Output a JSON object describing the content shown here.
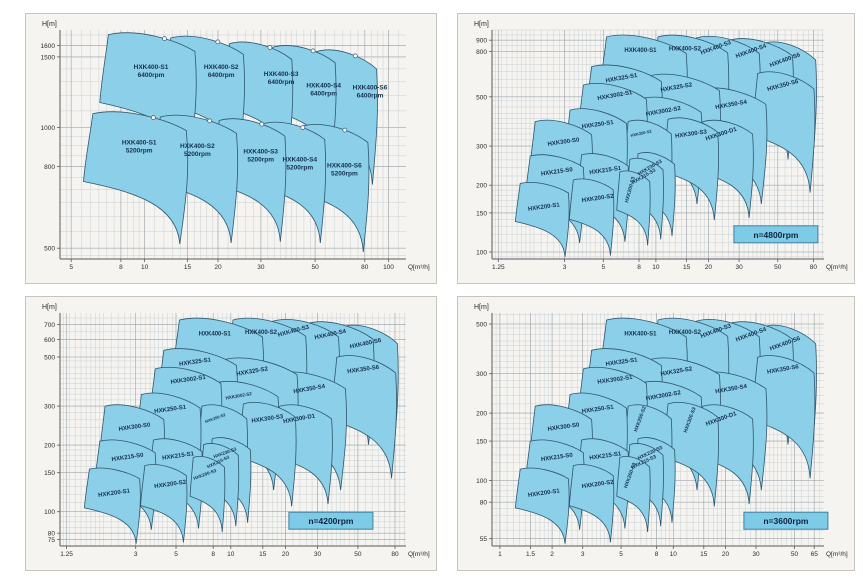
{
  "colors": {
    "region_fill": "#8BCFE9",
    "region_stroke": "#2F566D",
    "region_label": "#14304D",
    "grid_minor": "#C9CFD4",
    "grid_major": "#9FA8AD",
    "axis": "#5A5A5A",
    "text": "#2A2A2A",
    "panel_bg": "#F5F4F0",
    "panel_border": "#C7C4BE",
    "badge_fill": "#7DCBE6",
    "badge_border": "#3F7FA0",
    "badge_text": "#0F2340"
  },
  "region_fields": [
    "label",
    "x",
    "y",
    "w",
    "h",
    "label_x",
    "label_y",
    "label_rot_deg",
    "label_font_px",
    "sublabel"
  ],
  "chart_data": [
    {
      "id": "hxk400-6400-5200",
      "type": "area",
      "ylabel": "H[m]",
      "xlabel": "Q[m³/h]",
      "badge": null,
      "badge_x": 0.76,
      "markers": true,
      "x_ticks": [
        5,
        8,
        10,
        15,
        20,
        30,
        50,
        80,
        100
      ],
      "x_range": [
        4.5,
        118
      ],
      "y_ticks": [
        1600,
        1500,
        1000,
        800,
        500
      ],
      "y_range": [
        470,
        1750
      ],
      "regions": [
        [
          "HXK400-S6",
          0.74,
          0.095,
          0.175,
          0.58,
          0.896,
          0.26,
          0,
          6.5,
          "6400rpm"
        ],
        [
          "HXK400-S4",
          0.615,
          0.075,
          0.18,
          0.52,
          0.762,
          0.25,
          0,
          6.5,
          "6400rpm"
        ],
        [
          "HXK400-S3",
          0.49,
          0.06,
          0.18,
          0.53,
          0.639,
          0.2,
          0,
          6.5,
          "6400rpm"
        ],
        [
          "HXK400-S2",
          0.32,
          0.035,
          0.21,
          0.55,
          0.466,
          0.17,
          0,
          6.5,
          "6400rpm"
        ],
        [
          "HXK400-S1",
          0.14,
          0.02,
          0.25,
          0.57,
          0.263,
          0.17,
          0,
          6.5,
          "6400rpm"
        ],
        [
          "HXK400-S6",
          0.7,
          0.42,
          0.19,
          0.55,
          0.822,
          0.6,
          0,
          6.5,
          "5200rpm"
        ],
        [
          "HXK400-S4",
          0.585,
          0.41,
          0.18,
          0.52,
          0.693,
          0.575,
          0,
          6.5,
          "5200rpm"
        ],
        [
          "HXK400-S3",
          0.46,
          0.395,
          0.19,
          0.53,
          0.58,
          0.54,
          0,
          6.5,
          "5200rpm"
        ],
        [
          "HXK400-S2",
          0.29,
          0.38,
          0.22,
          0.55,
          0.397,
          0.515,
          0,
          6.5,
          "5200rpm"
        ],
        [
          "HXK400-S1",
          0.095,
          0.365,
          0.27,
          0.57,
          0.229,
          0.5,
          0,
          6.5,
          "5200rpm"
        ]
      ]
    },
    {
      "id": "family-4800rpm",
      "type": "area",
      "ylabel": "H[m]",
      "xlabel": "Q[m³/h]",
      "badge": "n=4800rpm",
      "badge_x": 0.795,
      "markers": false,
      "x_ticks": [
        1.25,
        3,
        5,
        8,
        10,
        15,
        20,
        30,
        50,
        80
      ],
      "x_range": [
        1.15,
        92
      ],
      "y_ticks": [
        900,
        800,
        500,
        300,
        200,
        150,
        100
      ],
      "y_range": [
        93,
        1000
      ],
      "regions": [
        [
          "HXK400-S6",
          0.815,
          0.06,
          0.16,
          0.55,
          0.884,
          0.138,
          -20,
          6,
          null
        ],
        [
          "HXK400-S4",
          0.715,
          0.045,
          0.19,
          0.52,
          0.782,
          0.099,
          -20,
          6,
          null
        ],
        [
          "HXK400-S3",
          0.615,
          0.035,
          0.19,
          0.52,
          0.676,
          0.084,
          -20,
          6,
          null
        ],
        [
          "HXK400-S2",
          0.5,
          0.03,
          0.21,
          0.54,
          0.581,
          0.09,
          0,
          6,
          null
        ],
        [
          "HXK400-S1",
          0.345,
          0.03,
          0.24,
          0.56,
          0.447,
          0.097,
          0,
          6,
          null
        ],
        [
          "HXK350-S6",
          0.8,
          0.19,
          0.17,
          0.52,
          0.877,
          0.249,
          -15,
          6,
          null
        ],
        [
          "HXK350-S4",
          0.625,
          0.26,
          0.2,
          0.5,
          0.721,
          0.333,
          -10,
          6,
          null
        ],
        [
          "HXK325-S2",
          0.475,
          0.2,
          0.21,
          0.5,
          0.556,
          0.258,
          -10,
          6,
          null
        ],
        [
          "HXK325-S1",
          0.3,
          0.16,
          0.21,
          0.5,
          0.391,
          0.217,
          -10,
          6,
          null
        ],
        [
          "HXK3002-S2",
          0.45,
          0.3,
          0.18,
          0.46,
          0.517,
          0.362,
          -10,
          6,
          null
        ],
        [
          "HXK3002-S1",
          0.275,
          0.24,
          0.19,
          0.48,
          0.371,
          0.293,
          -10,
          6,
          null
        ],
        [
          "HXK300-D1",
          0.635,
          0.4,
          0.15,
          0.42,
          0.692,
          0.461,
          -18,
          6,
          null
        ],
        [
          "HXK300-S3",
          0.53,
          0.39,
          0.15,
          0.44,
          0.6,
          0.461,
          -8,
          6,
          null
        ],
        [
          "HXK250-S2",
          0.41,
          0.4,
          0.13,
          0.42,
          0.45,
          0.457,
          -12,
          4,
          null
        ],
        [
          "HXK250-S1",
          0.235,
          0.35,
          0.17,
          0.45,
          0.319,
          0.42,
          -8,
          6,
          null
        ],
        [
          "HXK300-S0",
          0.13,
          0.4,
          0.17,
          0.44,
          0.216,
          0.496,
          -8,
          6,
          null
        ],
        [
          "HXK230-S3",
          0.44,
          0.54,
          0.11,
          0.36,
          0.478,
          0.606,
          -30,
          5,
          null
        ],
        [
          "HXK215-S3",
          0.415,
          0.565,
          0.1,
          0.35,
          0.459,
          0.645,
          -30,
          5,
          null
        ],
        [
          "HXK215-S1",
          0.27,
          0.545,
          0.14,
          0.38,
          0.342,
          0.62,
          -8,
          6,
          null
        ],
        [
          "HXK215-S0",
          0.115,
          0.55,
          0.16,
          0.38,
          0.196,
          0.626,
          -8,
          6,
          null
        ],
        [
          "HXK200-S3",
          0.385,
          0.62,
          0.09,
          0.32,
          0.42,
          0.699,
          -75,
          5,
          null
        ],
        [
          "HXK200-S2",
          0.245,
          0.655,
          0.12,
          0.33,
          0.319,
          0.742,
          -8,
          6,
          null
        ],
        [
          "HXK200-S1",
          0.085,
          0.67,
          0.145,
          0.32,
          0.157,
          0.78,
          -8,
          6,
          null
        ]
      ]
    },
    {
      "id": "family-4200rpm",
      "type": "area",
      "ylabel": "H[m]",
      "xlabel": "Q[m³/h]",
      "badge": "n=4200rpm",
      "badge_x": 0.725,
      "markers": false,
      "x_ticks": [
        1.25,
        3,
        5,
        8,
        10,
        15,
        20,
        30,
        50,
        80
      ],
      "x_range": [
        1.15,
        92
      ],
      "y_ticks": [
        700,
        600,
        500,
        300,
        200,
        150,
        100,
        80,
        75
      ],
      "y_range": [
        70,
        790
      ],
      "regions": [
        [
          "HXK400-S6",
          0.815,
          0.06,
          0.16,
          0.55,
          0.884,
          0.138,
          -12,
          6,
          null
        ],
        [
          "HXK400-S4",
          0.715,
          0.045,
          0.19,
          0.52,
          0.782,
          0.099,
          -12,
          6,
          null
        ],
        [
          "HXK400-S3",
          0.615,
          0.035,
          0.19,
          0.52,
          0.676,
          0.084,
          -15,
          6,
          null
        ],
        [
          "HXK400-S2",
          0.5,
          0.03,
          0.21,
          0.54,
          0.581,
          0.09,
          0,
          6,
          null
        ],
        [
          "HXK400-S1",
          0.345,
          0.03,
          0.24,
          0.56,
          0.447,
          0.097,
          0,
          6,
          null
        ],
        [
          "HXK350-S6",
          0.8,
          0.19,
          0.17,
          0.52,
          0.877,
          0.249,
          -8,
          6,
          null
        ],
        [
          "HXK350-S4",
          0.625,
          0.26,
          0.2,
          0.5,
          0.721,
          0.333,
          -10,
          6,
          null
        ],
        [
          "HXK325-S2",
          0.475,
          0.2,
          0.21,
          0.5,
          0.556,
          0.258,
          -10,
          6,
          null
        ],
        [
          "HXK325-S1",
          0.3,
          0.16,
          0.21,
          0.5,
          0.391,
          0.217,
          -8,
          6,
          null
        ],
        [
          "HXK3002-S2",
          0.45,
          0.3,
          0.18,
          0.46,
          0.517,
          0.362,
          -10,
          4.5,
          null
        ],
        [
          "HXK3002-S1",
          0.275,
          0.24,
          0.19,
          0.48,
          0.371,
          0.293,
          -8,
          6,
          null
        ],
        [
          "HXK300-D1",
          0.635,
          0.4,
          0.15,
          0.42,
          0.692,
          0.461,
          -10,
          6,
          null
        ],
        [
          "HXK300-S3",
          0.53,
          0.39,
          0.15,
          0.44,
          0.6,
          0.461,
          -8,
          6,
          null
        ],
        [
          "HXK250-S2",
          0.41,
          0.4,
          0.13,
          0.42,
          0.45,
          0.457,
          -20,
          4,
          null
        ],
        [
          "HXK250-S1",
          0.235,
          0.35,
          0.17,
          0.45,
          0.319,
          0.42,
          -8,
          6,
          null
        ],
        [
          "HXK300-S0",
          0.13,
          0.4,
          0.17,
          0.44,
          0.216,
          0.496,
          -8,
          6,
          null
        ],
        [
          "HXK230-S3",
          0.44,
          0.54,
          0.11,
          0.36,
          0.478,
          0.606,
          -20,
          4.5,
          null
        ],
        [
          "HXK215-S3",
          0.415,
          0.565,
          0.1,
          0.35,
          0.459,
          0.645,
          -25,
          4.5,
          null
        ],
        [
          "HXK215-S1",
          0.27,
          0.545,
          0.14,
          0.38,
          0.342,
          0.62,
          -8,
          6,
          null
        ],
        [
          "HXK215-S0",
          0.115,
          0.55,
          0.16,
          0.38,
          0.196,
          0.626,
          -8,
          6,
          null
        ],
        [
          "HXK200-S3",
          0.385,
          0.62,
          0.09,
          0.32,
          0.42,
          0.699,
          -20,
          4.5,
          null
        ],
        [
          "HXK200-S2",
          0.245,
          0.655,
          0.12,
          0.33,
          0.319,
          0.742,
          -8,
          6,
          null
        ],
        [
          "HXK200-S1",
          0.085,
          0.67,
          0.145,
          0.32,
          0.157,
          0.78,
          -8,
          6,
          null
        ]
      ]
    },
    {
      "id": "family-3600rpm",
      "type": "area",
      "ylabel": "H[m]",
      "xlabel": "Q[m³/h]",
      "badge": "n=3600rpm",
      "badge_x": 0.825,
      "markers": false,
      "x_ticks": [
        1,
        1.5,
        2,
        3,
        5,
        8,
        10,
        15,
        20,
        30,
        50,
        65
      ],
      "x_range": [
        0.9,
        74
      ],
      "y_ticks": [
        500,
        300,
        200,
        150,
        100,
        80,
        55
      ],
      "y_range": [
        51,
        560
      ],
      "regions": [
        [
          "HXK400-S6",
          0.815,
          0.06,
          0.16,
          0.55,
          0.884,
          0.138,
          -20,
          6,
          null
        ],
        [
          "HXK400-S4",
          0.715,
          0.045,
          0.19,
          0.52,
          0.782,
          0.099,
          -20,
          6,
          null
        ],
        [
          "HXK400-S3",
          0.615,
          0.035,
          0.19,
          0.52,
          0.676,
          0.084,
          -20,
          6,
          null
        ],
        [
          "HXK400-S2",
          0.5,
          0.03,
          0.21,
          0.54,
          0.581,
          0.09,
          0,
          6,
          null
        ],
        [
          "HXK400-S1",
          0.345,
          0.03,
          0.24,
          0.56,
          0.447,
          0.097,
          0,
          6,
          null
        ],
        [
          "HXK350-S6",
          0.8,
          0.19,
          0.17,
          0.52,
          0.877,
          0.249,
          -10,
          6,
          null
        ],
        [
          "HXK350-S4",
          0.625,
          0.26,
          0.2,
          0.5,
          0.721,
          0.333,
          -10,
          6,
          null
        ],
        [
          "HXK325-S2",
          0.475,
          0.2,
          0.21,
          0.5,
          0.556,
          0.258,
          -10,
          6,
          null
        ],
        [
          "HXK325-S1",
          0.3,
          0.16,
          0.21,
          0.5,
          0.391,
          0.217,
          -8,
          6,
          null
        ],
        [
          "HXK3002-S2",
          0.45,
          0.3,
          0.18,
          0.46,
          0.517,
          0.362,
          -10,
          6,
          null
        ],
        [
          "HXK3002-S1",
          0.275,
          0.24,
          0.19,
          0.48,
          0.371,
          0.293,
          -8,
          6,
          null
        ],
        [
          "HXK300-D1",
          0.635,
          0.4,
          0.15,
          0.42,
          0.692,
          0.461,
          -20,
          6,
          null
        ],
        [
          "HXK300-S3",
          0.53,
          0.39,
          0.15,
          0.44,
          0.6,
          0.461,
          -70,
          5,
          null
        ],
        [
          "HXK250-S2",
          0.41,
          0.4,
          0.13,
          0.42,
          0.45,
          0.457,
          -70,
          5,
          null
        ],
        [
          "HXK250-S1",
          0.235,
          0.35,
          0.17,
          0.45,
          0.319,
          0.42,
          -8,
          6,
          null
        ],
        [
          "HXK300-S0",
          0.13,
          0.4,
          0.17,
          0.44,
          0.216,
          0.496,
          -8,
          6,
          null
        ],
        [
          "HXK230-S3",
          0.44,
          0.54,
          0.11,
          0.36,
          0.478,
          0.606,
          -25,
          5,
          null
        ],
        [
          "HXK215-S3",
          0.415,
          0.565,
          0.1,
          0.35,
          0.459,
          0.645,
          -25,
          5,
          null
        ],
        [
          "HXK215-S1",
          0.27,
          0.545,
          0.14,
          0.38,
          0.342,
          0.62,
          -8,
          6,
          null
        ],
        [
          "HXK215-S0",
          0.115,
          0.55,
          0.16,
          0.38,
          0.196,
          0.626,
          -8,
          6,
          null
        ],
        [
          "HXK200-S3",
          0.385,
          0.62,
          0.09,
          0.32,
          0.42,
          0.699,
          -70,
          5,
          null
        ],
        [
          "HXK200-S2",
          0.245,
          0.655,
          0.12,
          0.33,
          0.319,
          0.742,
          -8,
          6,
          null
        ],
        [
          "HXK200-S1",
          0.085,
          0.67,
          0.145,
          0.32,
          0.157,
          0.78,
          -8,
          6,
          null
        ]
      ]
    }
  ]
}
